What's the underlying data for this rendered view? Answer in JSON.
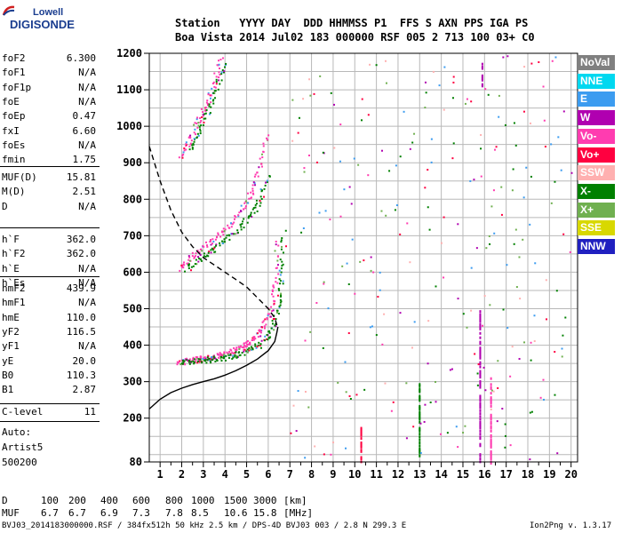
{
  "logo": {
    "line1": "Lowell",
    "line2": "DIGISONDE"
  },
  "header": {
    "row1": "Station   YYYY DAY  DDD HHMMSS P1  FFS S AXN PPS IGA PS",
    "row2": "Boa Vista 2014 Jul02 183 000000 RSF 005 2 713 100 03+ C0"
  },
  "params_group1": [
    {
      "name": "foF2",
      "value": "6.300"
    },
    {
      "name": "foF1",
      "value": "N/A"
    },
    {
      "name": "foF1p",
      "value": "N/A"
    },
    {
      "name": "foE",
      "value": "N/A"
    },
    {
      "name": "foEp",
      "value": "0.47"
    },
    {
      "name": "fxI",
      "value": "6.60"
    },
    {
      "name": "foEs",
      "value": "N/A"
    },
    {
      "name": "fmin",
      "value": "1.75"
    }
  ],
  "params_group2": [
    {
      "name": "MUF(D)",
      "value": "15.81"
    },
    {
      "name": "M(D)",
      "value": "2.51"
    },
    {
      "name": "D",
      "value": "N/A"
    }
  ],
  "params_group3": [
    {
      "name": "h`F",
      "value": "362.0"
    },
    {
      "name": "h`F2",
      "value": "362.0"
    },
    {
      "name": "h`E",
      "value": "N/A"
    },
    {
      "name": "h`Es",
      "value": "N/A"
    }
  ],
  "params_group4": [
    {
      "name": "hmF2",
      "value": "439.9"
    },
    {
      "name": "hmF1",
      "value": "N/A"
    },
    {
      "name": "hmE",
      "value": "110.0"
    },
    {
      "name": "yF2",
      "value": "116.5"
    },
    {
      "name": "yF1",
      "value": "N/A"
    },
    {
      "name": "yE",
      "value": "20.0"
    },
    {
      "name": "B0",
      "value": "110.3"
    },
    {
      "name": "B1",
      "value": "2.87"
    }
  ],
  "params_group5": [
    {
      "name": "C-level",
      "value": "11"
    }
  ],
  "auto": {
    "line1": "Auto:",
    "line2": "Artist5",
    "line3": "500200"
  },
  "legend": [
    {
      "label": "NoVal",
      "color": "#808080"
    },
    {
      "label": "NNE",
      "color": "#00d8f0"
    },
    {
      "label": "E",
      "color": "#3c9cf0"
    },
    {
      "label": "W",
      "color": "#b000b0"
    },
    {
      "label": "Vo-",
      "color": "#ff3cb0"
    },
    {
      "label": "Vo+",
      "color": "#ff0040"
    },
    {
      "label": "SSW",
      "color": "#ffb0b0"
    },
    {
      "label": "X-",
      "color": "#008000"
    },
    {
      "label": "X+",
      "color": "#70b050"
    },
    {
      "label": "SSE",
      "color": "#d8d800"
    },
    {
      "label": "NNW",
      "color": "#2020c0"
    }
  ],
  "muf_table": {
    "d_label": "D",
    "d_values": [
      "100",
      "200",
      "400",
      "600",
      "800",
      "1000",
      "1500",
      "3000"
    ],
    "d_unit": "[km]",
    "muf_label": "MUF",
    "muf_values": [
      "6.7",
      "6.7",
      "6.9",
      "7.3",
      "7.8",
      "8.5",
      "10.6",
      "15.8"
    ],
    "muf_unit": "[MHz]"
  },
  "footer": {
    "left": "BVJ03_2014183000000.RSF / 384fx512h 50 kHz 2.5 km / DPS-4D BVJ03 003 / 2.8 N 299.3 E",
    "right": "Ion2Png v. 1.3.17"
  },
  "chart_data": {
    "type": "scatter",
    "title": "",
    "xlabel": "",
    "ylabel": "",
    "xlim": [
      0.5,
      20.3
    ],
    "ylim": [
      80,
      1200
    ],
    "x_ticks": [
      1,
      2,
      3,
      4,
      5,
      6,
      7,
      8,
      9,
      10,
      11,
      12,
      13,
      14,
      15,
      16,
      17,
      18,
      19,
      20
    ],
    "y_ticks": [
      80,
      200,
      300,
      400,
      500,
      600,
      700,
      800,
      900,
      1000,
      1100,
      1200
    ],
    "grid": true,
    "traces": [
      {
        "name": "F2 O-trace",
        "color": "#ff3cb0",
        "x": [
          1.8,
          2.2,
          2.6,
          3.0,
          3.4,
          3.8,
          4.2,
          4.6,
          5.0,
          5.4,
          5.8,
          6.1,
          6.3,
          6.4
        ],
        "y": [
          355,
          358,
          362,
          365,
          370,
          375,
          382,
          392,
          405,
          425,
          455,
          500,
          570,
          700
        ]
      },
      {
        "name": "F2 X-trace",
        "color": "#008000",
        "x": [
          2.0,
          2.5,
          3.0,
          3.5,
          4.0,
          4.5,
          5.0,
          5.5,
          6.0,
          6.3,
          6.5,
          6.6,
          6.7
        ],
        "y": [
          355,
          358,
          360,
          364,
          368,
          375,
          385,
          400,
          425,
          470,
          530,
          600,
          720
        ]
      },
      {
        "name": "2-hop O-trace",
        "color": "#ff3cb0",
        "x": [
          1.9,
          2.4,
          3.0,
          3.6,
          4.2,
          4.8,
          5.2,
          5.6,
          5.9
        ],
        "y": [
          610,
          640,
          670,
          700,
          730,
          775,
          820,
          890,
          990
        ]
      },
      {
        "name": "2-hop X-trace",
        "color": "#008000",
        "x": [
          2.2,
          2.8,
          3.4,
          4.0,
          4.6,
          5.2,
          5.6,
          6.0
        ],
        "y": [
          610,
          640,
          665,
          690,
          720,
          760,
          800,
          870
        ]
      },
      {
        "name": "3-hop trace",
        "color": "#ff3cb0",
        "x": [
          1.9,
          2.3,
          2.7,
          3.1,
          3.5,
          3.8
        ],
        "y": [
          920,
          960,
          1010,
          1060,
          1120,
          1200
        ]
      },
      {
        "name": "3-hop X-trace",
        "color": "#008000",
        "x": [
          2.4,
          2.8,
          3.2,
          3.6,
          4.0
        ],
        "y": [
          940,
          990,
          1050,
          1110,
          1180
        ]
      }
    ],
    "profile_solid": {
      "color": "#000000",
      "x": [
        0.5,
        1.0,
        1.5,
        2.0,
        2.5,
        3.0,
        3.5,
        4.0,
        4.5,
        5.0,
        5.5,
        6.0,
        6.3,
        6.4,
        6.45
      ],
      "y": [
        225,
        252,
        270,
        282,
        292,
        300,
        308,
        318,
        330,
        345,
        362,
        385,
        410,
        435,
        450
      ]
    },
    "profile_dashed": {
      "color": "#000000",
      "x": [
        0.5,
        1.0,
        1.5,
        2.0,
        2.5,
        3.0,
        3.5,
        4.0,
        4.5,
        5.0,
        5.5,
        6.0,
        6.3,
        6.4
      ],
      "y": [
        945,
        850,
        770,
        710,
        670,
        640,
        620,
        600,
        580,
        560,
        530,
        500,
        475,
        455
      ]
    },
    "vertical_noise": [
      {
        "x": 10.3,
        "ymin": 80,
        "ymax": 180,
        "color": "#ff0040"
      },
      {
        "x": 15.8,
        "ymin": 80,
        "ymax": 500,
        "color": "#b000b0"
      },
      {
        "x": 15.9,
        "ymin": 1110,
        "ymax": 1180,
        "color": "#b000b0"
      },
      {
        "x": 16.3,
        "ymin": 80,
        "ymax": 320,
        "color": "#ff3cb0"
      },
      {
        "x": 13.0,
        "ymin": 100,
        "ymax": 300,
        "color": "#008000"
      }
    ]
  }
}
